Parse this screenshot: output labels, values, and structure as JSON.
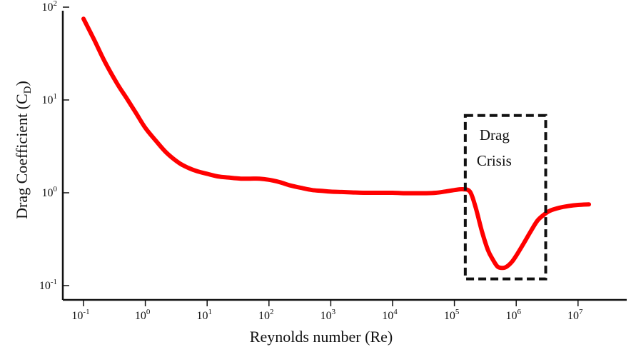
{
  "chart_data": {
    "type": "line",
    "xlabel": "Reynolds number (Re)",
    "ylabel": "Drag Coefficient (C",
    "ylabel_sub": "D",
    "ylabel_close": ")",
    "x_scale": "log",
    "y_scale": "log",
    "xlim": [
      0.1,
      10000000
    ],
    "ylim": [
      0.1,
      100
    ],
    "x_ticks": [
      {
        "base": "10",
        "exp": "-1",
        "value": 0.1
      },
      {
        "base": "10",
        "exp": "0",
        "value": 1
      },
      {
        "base": "10",
        "exp": "1",
        "value": 10
      },
      {
        "base": "10",
        "exp": "2",
        "value": 100
      },
      {
        "base": "10",
        "exp": "3",
        "value": 1000
      },
      {
        "base": "10",
        "exp": "4",
        "value": 10000
      },
      {
        "base": "10",
        "exp": "5",
        "value": 100000
      },
      {
        "base": "10",
        "exp": "6",
        "value": 1000000
      },
      {
        "base": "10",
        "exp": "7",
        "value": 10000000
      }
    ],
    "y_ticks": [
      {
        "base": "10",
        "exp": "-1",
        "value": 0.1
      },
      {
        "base": "10",
        "exp": "0",
        "value": 1
      },
      {
        "base": "10",
        "exp": "1",
        "value": 10
      },
      {
        "base": "10",
        "exp": "2",
        "value": 100
      }
    ],
    "grid": false,
    "series": [
      {
        "color": "#ff0000",
        "points": [
          [
            0.1,
            75
          ],
          [
            0.15,
            44
          ],
          [
            0.22,
            26
          ],
          [
            0.35,
            15
          ],
          [
            0.5,
            10.4
          ],
          [
            0.7,
            7.3
          ],
          [
            1,
            5.0
          ],
          [
            1.5,
            3.6
          ],
          [
            2.2,
            2.7
          ],
          [
            3.5,
            2.1
          ],
          [
            5,
            1.85
          ],
          [
            7,
            1.7
          ],
          [
            10,
            1.6
          ],
          [
            15,
            1.5
          ],
          [
            22,
            1.46
          ],
          [
            35,
            1.42
          ],
          [
            50,
            1.42
          ],
          [
            70,
            1.42
          ],
          [
            100,
            1.38
          ],
          [
            150,
            1.3
          ],
          [
            220,
            1.2
          ],
          [
            350,
            1.12
          ],
          [
            500,
            1.07
          ],
          [
            700,
            1.05
          ],
          [
            1000,
            1.03
          ],
          [
            1500,
            1.02
          ],
          [
            2200,
            1.01
          ],
          [
            3500,
            1.0
          ],
          [
            5000,
            1.0
          ],
          [
            7000,
            1.0
          ],
          [
            10000,
            1.0
          ],
          [
            15000,
            0.99
          ],
          [
            22000,
            0.99
          ],
          [
            35000,
            0.99
          ],
          [
            50000,
            1.0
          ],
          [
            70000,
            1.03
          ],
          [
            100000,
            1.07
          ],
          [
            140000,
            1.09
          ],
          [
            180000,
            1.02
          ],
          [
            220000,
            0.7
          ],
          [
            280000,
            0.38
          ],
          [
            350000,
            0.24
          ],
          [
            420000,
            0.19
          ],
          [
            500000,
            0.16
          ],
          [
            600000,
            0.155
          ],
          [
            700000,
            0.16
          ],
          [
            850000,
            0.18
          ],
          [
            1000000,
            0.21
          ],
          [
            1300000,
            0.28
          ],
          [
            1700000,
            0.38
          ],
          [
            2200000,
            0.5
          ],
          [
            2800000,
            0.58
          ],
          [
            3500000,
            0.64
          ],
          [
            5000000,
            0.69
          ],
          [
            7000000,
            0.72
          ],
          [
            10000000,
            0.74
          ],
          [
            15000000,
            0.75
          ]
        ]
      }
    ],
    "annotations": [
      {
        "text_line1": "Drag",
        "text_line2": "Crisis",
        "box_style": "dashed",
        "x_range": [
          150000,
          3000000
        ],
        "y_range": [
          0.118,
          6.8
        ]
      }
    ]
  }
}
